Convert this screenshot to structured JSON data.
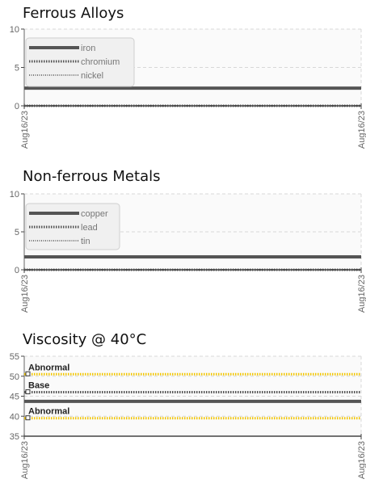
{
  "chart_data": [
    {
      "type": "line",
      "title": "Ferrous Alloys",
      "x": [
        "Aug16/23",
        "Aug16/23"
      ],
      "xticks": [
        "Aug16/23",
        "Aug16/23"
      ],
      "ylim": [
        0,
        10
      ],
      "yticks": [
        0,
        5,
        10
      ],
      "grid": true,
      "legend": "top-left",
      "series": [
        {
          "name": "iron",
          "values": [
            2.3,
            2.3
          ],
          "color": "#555555",
          "style": "solid"
        },
        {
          "name": "chromium",
          "values": [
            0,
            0
          ],
          "color": "#555555",
          "style": "dotted"
        },
        {
          "name": "nickel",
          "values": [
            0,
            0
          ],
          "color": "#777777",
          "style": "dotted-thin"
        }
      ]
    },
    {
      "type": "line",
      "title": "Non-ferrous Metals",
      "x": [
        "Aug16/23",
        "Aug16/23"
      ],
      "xticks": [
        "Aug16/23",
        "Aug16/23"
      ],
      "ylim": [
        0,
        10
      ],
      "yticks": [
        0,
        5,
        10
      ],
      "grid": true,
      "legend": "top-left",
      "series": [
        {
          "name": "copper",
          "values": [
            1.7,
            1.7
          ],
          "color": "#555555",
          "style": "solid"
        },
        {
          "name": "lead",
          "values": [
            0,
            0
          ],
          "color": "#555555",
          "style": "dotted"
        },
        {
          "name": "tin",
          "values": [
            0,
            0
          ],
          "color": "#777777",
          "style": "dotted-thin"
        }
      ]
    },
    {
      "type": "line",
      "title": "Viscosity @ 40°C",
      "x": [
        "Aug16/23",
        "Aug16/23"
      ],
      "xticks": [
        "Aug16/23",
        "Aug16/23"
      ],
      "ylim": [
        35,
        55
      ],
      "yticks": [
        35,
        40,
        45,
        50,
        55
      ],
      "grid": true,
      "legend": "none",
      "series": [
        {
          "values": [
            43.7,
            43.7
          ],
          "color": "#555555",
          "style": "solid"
        }
      ],
      "reference_lines": [
        {
          "label": "Abnormal",
          "value": 50.5,
          "color": "#f2c500",
          "style": "dotted"
        },
        {
          "label": "Base",
          "value": 46,
          "color": "#555555",
          "style": "dotted"
        },
        {
          "label": "Abnormal",
          "value": 39.5,
          "color": "#f2c500",
          "style": "dotted"
        }
      ]
    }
  ]
}
